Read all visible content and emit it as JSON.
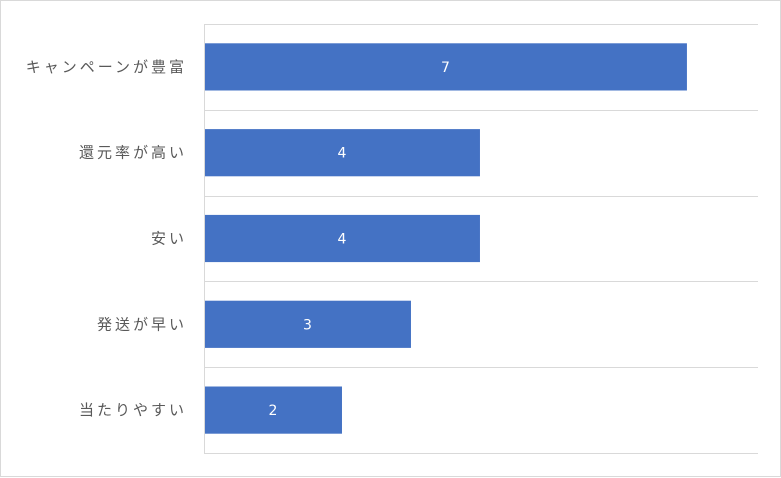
{
  "chart_data": {
    "type": "bar",
    "orientation": "horizontal",
    "categories": [
      "キャンペーンが豊富",
      "還元率が高い",
      "安い",
      "発送が早い",
      "当たりやすい"
    ],
    "values": [
      7,
      4,
      4,
      3,
      2
    ],
    "title": "",
    "xlabel": "",
    "ylabel": "",
    "xlim": [
      0,
      8
    ],
    "grid": true,
    "bar_color": "#4472c4",
    "data_labels": true
  }
}
